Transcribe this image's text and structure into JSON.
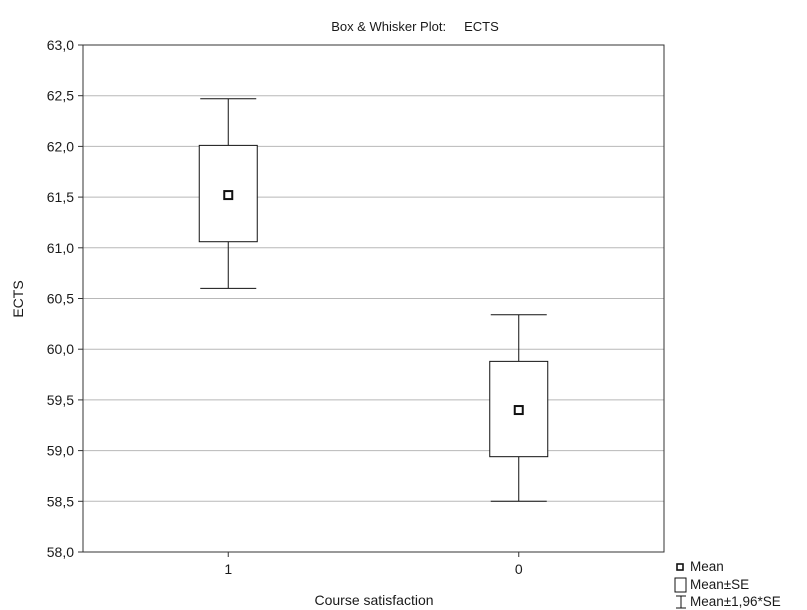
{
  "chart_data": {
    "type": "box",
    "title": "Box & Whisker Plot:     ECTS",
    "xlabel": "Course satisfaction",
    "ylabel": "ECTS",
    "ylim": [
      58.0,
      63.0
    ],
    "y_ticks": [
      "58,0",
      "58,5",
      "59,0",
      "59,5",
      "60,0",
      "60,5",
      "61,0",
      "61,5",
      "62,0",
      "62,5",
      "63,0"
    ],
    "y_tick_values": [
      58.0,
      58.5,
      59.0,
      59.5,
      60.0,
      60.5,
      61.0,
      61.5,
      62.0,
      62.5,
      63.0
    ],
    "categories": [
      "1",
      "0"
    ],
    "groups": [
      {
        "category": "1",
        "mean": 61.52,
        "se_low": 61.06,
        "se_high": 62.01,
        "ci_low": 60.6,
        "ci_high": 62.47
      },
      {
        "category": "0",
        "mean": 59.4,
        "se_low": 58.94,
        "se_high": 59.88,
        "ci_low": 58.5,
        "ci_high": 60.34
      }
    ],
    "grid": true,
    "legend_position": "bottom-right",
    "legend": [
      "Mean",
      "Mean±SE",
      "Mean±1,96*SE"
    ]
  }
}
